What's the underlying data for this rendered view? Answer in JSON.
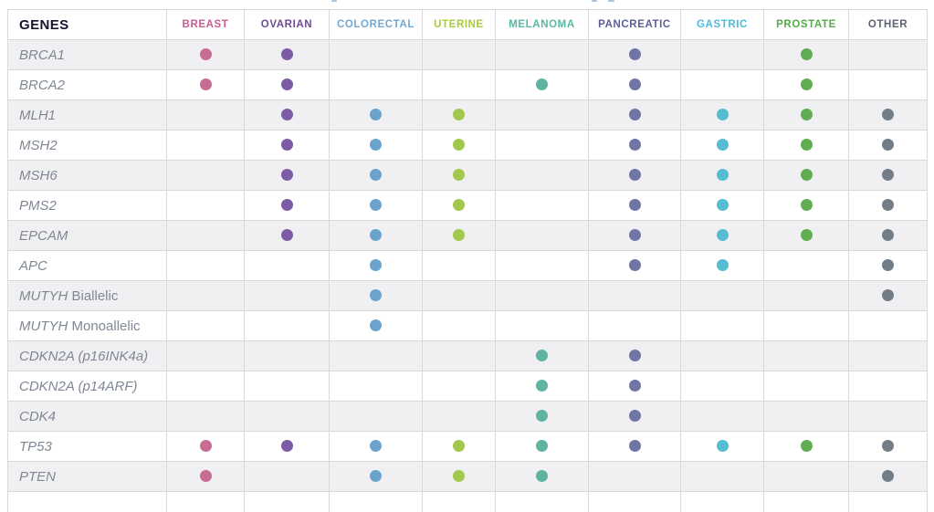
{
  "chart_data": {
    "type": "table",
    "row_header": "GENES",
    "columns": [
      {
        "key": "breast",
        "label": "BREAST",
        "header_color": "#c75d92",
        "dot_color": "#c76d94"
      },
      {
        "key": "ovarian",
        "label": "OVARIAN",
        "header_color": "#6d4b95",
        "dot_color": "#7d5ca6"
      },
      {
        "key": "colorectal",
        "label": "COLORECTAL",
        "header_color": "#72a9d3",
        "dot_color": "#6aa3cc"
      },
      {
        "key": "uterine",
        "label": "UTERINE",
        "header_color": "#a8cb3c",
        "dot_color": "#a3c84e"
      },
      {
        "key": "melanoma",
        "label": "MELANOMA",
        "header_color": "#59b8a5",
        "dot_color": "#5fb3a0"
      },
      {
        "key": "pancreatic",
        "label": "PANCREATIC",
        "header_color": "#5b5f96",
        "dot_color": "#7175a6"
      },
      {
        "key": "gastric",
        "label": "GASTRIC",
        "header_color": "#4cbcda",
        "dot_color": "#55bcd2"
      },
      {
        "key": "prostate",
        "label": "PROSTATE",
        "header_color": "#54ab49",
        "dot_color": "#61ad52"
      },
      {
        "key": "other",
        "label": "OTHER",
        "header_color": "#5c6472",
        "dot_color": "#727d87"
      }
    ],
    "rows": [
      {
        "gene": "BRCA1",
        "gene_suffix": "",
        "dots": [
          1,
          1,
          0,
          0,
          0,
          1,
          0,
          1,
          0
        ]
      },
      {
        "gene": "BRCA2",
        "gene_suffix": "",
        "dots": [
          1,
          1,
          0,
          0,
          1,
          1,
          0,
          1,
          0
        ]
      },
      {
        "gene": "MLH1",
        "gene_suffix": "",
        "dots": [
          0,
          1,
          1,
          1,
          0,
          1,
          1,
          1,
          1
        ]
      },
      {
        "gene": "MSH2",
        "gene_suffix": "",
        "dots": [
          0,
          1,
          1,
          1,
          0,
          1,
          1,
          1,
          1
        ]
      },
      {
        "gene": "MSH6",
        "gene_suffix": "",
        "dots": [
          0,
          1,
          1,
          1,
          0,
          1,
          1,
          1,
          1
        ]
      },
      {
        "gene": "PMS2",
        "gene_suffix": "",
        "dots": [
          0,
          1,
          1,
          1,
          0,
          1,
          1,
          1,
          1
        ]
      },
      {
        "gene": "EPCAM",
        "gene_suffix": "",
        "dots": [
          0,
          1,
          1,
          1,
          0,
          1,
          1,
          1,
          1
        ]
      },
      {
        "gene": "APC",
        "gene_suffix": "",
        "dots": [
          0,
          0,
          1,
          0,
          0,
          1,
          1,
          0,
          1
        ]
      },
      {
        "gene": "MUTYH",
        "gene_suffix": "Biallelic",
        "dots": [
          0,
          0,
          1,
          0,
          0,
          0,
          0,
          0,
          1
        ]
      },
      {
        "gene": "MUTYH",
        "gene_suffix": "Monoallelic",
        "dots": [
          0,
          0,
          1,
          0,
          0,
          0,
          0,
          0,
          0
        ]
      },
      {
        "gene": "CDKN2A (p16INK4a)",
        "gene_suffix": "",
        "dots": [
          0,
          0,
          0,
          0,
          1,
          1,
          0,
          0,
          0
        ]
      },
      {
        "gene": "CDKN2A (p14ARF)",
        "gene_suffix": "",
        "dots": [
          0,
          0,
          0,
          0,
          1,
          1,
          0,
          0,
          0
        ]
      },
      {
        "gene": "CDK4",
        "gene_suffix": "",
        "dots": [
          0,
          0,
          0,
          0,
          1,
          1,
          0,
          0,
          0
        ]
      },
      {
        "gene": "TP53",
        "gene_suffix": "",
        "dots": [
          1,
          1,
          1,
          1,
          1,
          1,
          1,
          1,
          1
        ]
      },
      {
        "gene": "PTEN",
        "gene_suffix": "",
        "dots": [
          1,
          0,
          1,
          1,
          1,
          0,
          0,
          0,
          1
        ]
      }
    ]
  }
}
